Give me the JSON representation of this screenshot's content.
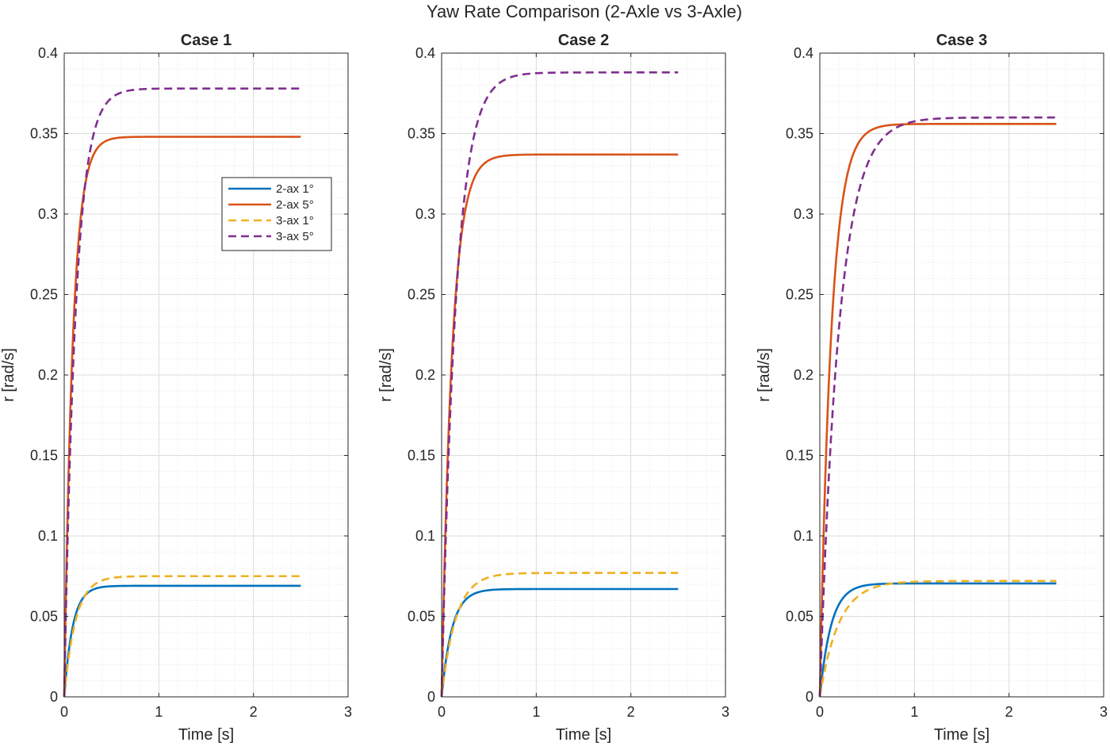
{
  "figure_title": "Yaw Rate Comparison (2-Axle vs 3-Axle)",
  "colors": {
    "2-ax 1°": "#0072BD",
    "2-ax 5°": "#D95319",
    "3-ax 1°": "#EDB120",
    "3-ax 5°": "#7E2F8E"
  },
  "legend": {
    "location": "top-right of Case 1 axes",
    "entries": [
      {
        "label": "2-ax 1°",
        "style": "solid"
      },
      {
        "label": "2-ax 5°",
        "style": "solid"
      },
      {
        "label": "3-ax 1°",
        "style": "dashed"
      },
      {
        "label": "3-ax 5°",
        "style": "dashed"
      }
    ]
  },
  "chart_data": [
    {
      "type": "line",
      "title": "Case 1",
      "xlabel": "Time [s]",
      "ylabel": "r [rad/s]",
      "xlim": [
        0,
        3
      ],
      "ylim": [
        0,
        0.4
      ],
      "xticks": [
        0,
        1,
        2,
        3
      ],
      "yticks": [
        0,
        0.05,
        0.1,
        0.15,
        0.2,
        0.25,
        0.3,
        0.35,
        0.4
      ],
      "grid": true,
      "minor_grid": true,
      "t_end": 2.5,
      "series": [
        {
          "name": "2-ax 1°",
          "style": "solid",
          "steady_state": 0.069,
          "time_constant": 0.09,
          "overshoot": 0.002
        },
        {
          "name": "2-ax 5°",
          "style": "solid",
          "steady_state": 0.348,
          "time_constant": 0.09,
          "overshoot": 0.006
        },
        {
          "name": "3-ax 1°",
          "style": "dashed",
          "steady_state": 0.075,
          "time_constant": 0.12,
          "overshoot": 0
        },
        {
          "name": "3-ax 5°",
          "style": "dashed",
          "steady_state": 0.378,
          "time_constant": 0.12,
          "overshoot": 0
        }
      ]
    },
    {
      "type": "line",
      "title": "Case 2",
      "xlabel": "Time [s]",
      "ylabel": "r [rad/s]",
      "xlim": [
        0,
        3
      ],
      "ylim": [
        0,
        0.4
      ],
      "xticks": [
        0,
        1,
        2,
        3
      ],
      "yticks": [
        0,
        0.05,
        0.1,
        0.15,
        0.2,
        0.25,
        0.3,
        0.35,
        0.4
      ],
      "grid": true,
      "minor_grid": true,
      "t_end": 2.5,
      "series": [
        {
          "name": "2-ax 1°",
          "style": "solid",
          "steady_state": 0.067,
          "time_constant": 0.11,
          "overshoot": 0
        },
        {
          "name": "2-ax 5°",
          "style": "solid",
          "steady_state": 0.337,
          "time_constant": 0.11,
          "overshoot": 0
        },
        {
          "name": "3-ax 1°",
          "style": "dashed",
          "steady_state": 0.077,
          "time_constant": 0.15,
          "overshoot": 0
        },
        {
          "name": "3-ax 5°",
          "style": "dashed",
          "steady_state": 0.388,
          "time_constant": 0.15,
          "overshoot": 0
        }
      ]
    },
    {
      "type": "line",
      "title": "Case 3",
      "xlabel": "Time [s]",
      "ylabel": "r [rad/s]",
      "xlim": [
        0,
        3
      ],
      "ylim": [
        0,
        0.4
      ],
      "xticks": [
        0,
        1,
        2,
        3
      ],
      "yticks": [
        0,
        0.05,
        0.1,
        0.15,
        0.2,
        0.25,
        0.3,
        0.35,
        0.4
      ],
      "grid": true,
      "minor_grid": true,
      "t_end": 2.5,
      "series": [
        {
          "name": "2-ax 1°",
          "style": "solid",
          "steady_state": 0.0705,
          "time_constant": 0.12,
          "overshoot": 0
        },
        {
          "name": "2-ax 5°",
          "style": "solid",
          "steady_state": 0.356,
          "time_constant": 0.12,
          "overshoot": 0
        },
        {
          "name": "3-ax 1°",
          "style": "dashed",
          "steady_state": 0.072,
          "time_constant": 0.2,
          "overshoot": 0
        },
        {
          "name": "3-ax 5°",
          "style": "dashed",
          "steady_state": 0.36,
          "time_constant": 0.2,
          "overshoot": 0
        }
      ]
    }
  ]
}
